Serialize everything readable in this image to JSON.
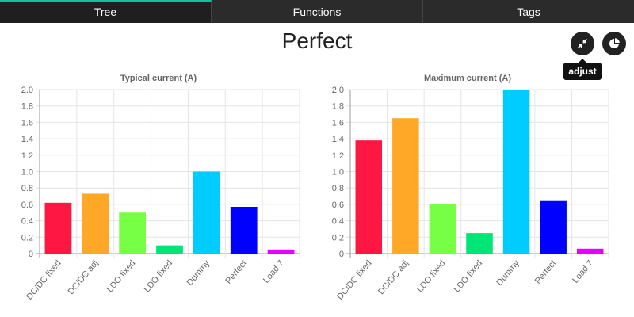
{
  "tabs": [
    {
      "label": "Tree",
      "active": true
    },
    {
      "label": "Functions",
      "active": false
    },
    {
      "label": "Tags",
      "active": false
    }
  ],
  "page": {
    "title": "Perfect"
  },
  "buttons": {
    "adjust": {
      "icon": "compress-arrows-icon",
      "tooltip": "adjust"
    },
    "pie": {
      "icon": "pie-chart-icon"
    }
  },
  "colors": {
    "accent": "#1abc9c",
    "tab_bg": "#2b2b2b"
  },
  "chart_data": [
    {
      "type": "bar",
      "title": "Typical current (A)",
      "categories": [
        "DC/DC fixed",
        "DC/DC adj",
        "LDO fixed",
        "LDO fixed",
        "Dummy",
        "Perfect",
        "Load 7"
      ],
      "values": [
        0.62,
        0.73,
        0.5,
        0.1,
        1.0,
        0.57,
        0.05
      ],
      "colors": [
        "#ff1744",
        "#ffa726",
        "#76ff45",
        "#00e676",
        "#00ccff",
        "#0000ff",
        "#e600ff"
      ],
      "ylim": [
        0,
        2.0
      ],
      "yticks": [
        "0",
        "0.2",
        "0.4",
        "0.6",
        "0.8",
        "1.0",
        "1.2",
        "1.4",
        "1.6",
        "1.8",
        "2.0"
      ],
      "grid": true
    },
    {
      "type": "bar",
      "title": "Maximum current (A)",
      "categories": [
        "DC/DC fixed",
        "DC/DC adj",
        "LDO fixed",
        "LDO fixed",
        "Dummy",
        "Perfect",
        "Load 7"
      ],
      "values": [
        1.38,
        1.65,
        0.6,
        0.25,
        2.0,
        0.65,
        0.06
      ],
      "colors": [
        "#ff1744",
        "#ffa726",
        "#76ff45",
        "#00e676",
        "#00ccff",
        "#0000ff",
        "#e600ff"
      ],
      "ylim": [
        0,
        2.0
      ],
      "yticks": [
        "0",
        "0.2",
        "0.4",
        "0.6",
        "0.8",
        "1.0",
        "1.2",
        "1.4",
        "1.6",
        "1.8",
        "2.0"
      ],
      "grid": true
    }
  ]
}
